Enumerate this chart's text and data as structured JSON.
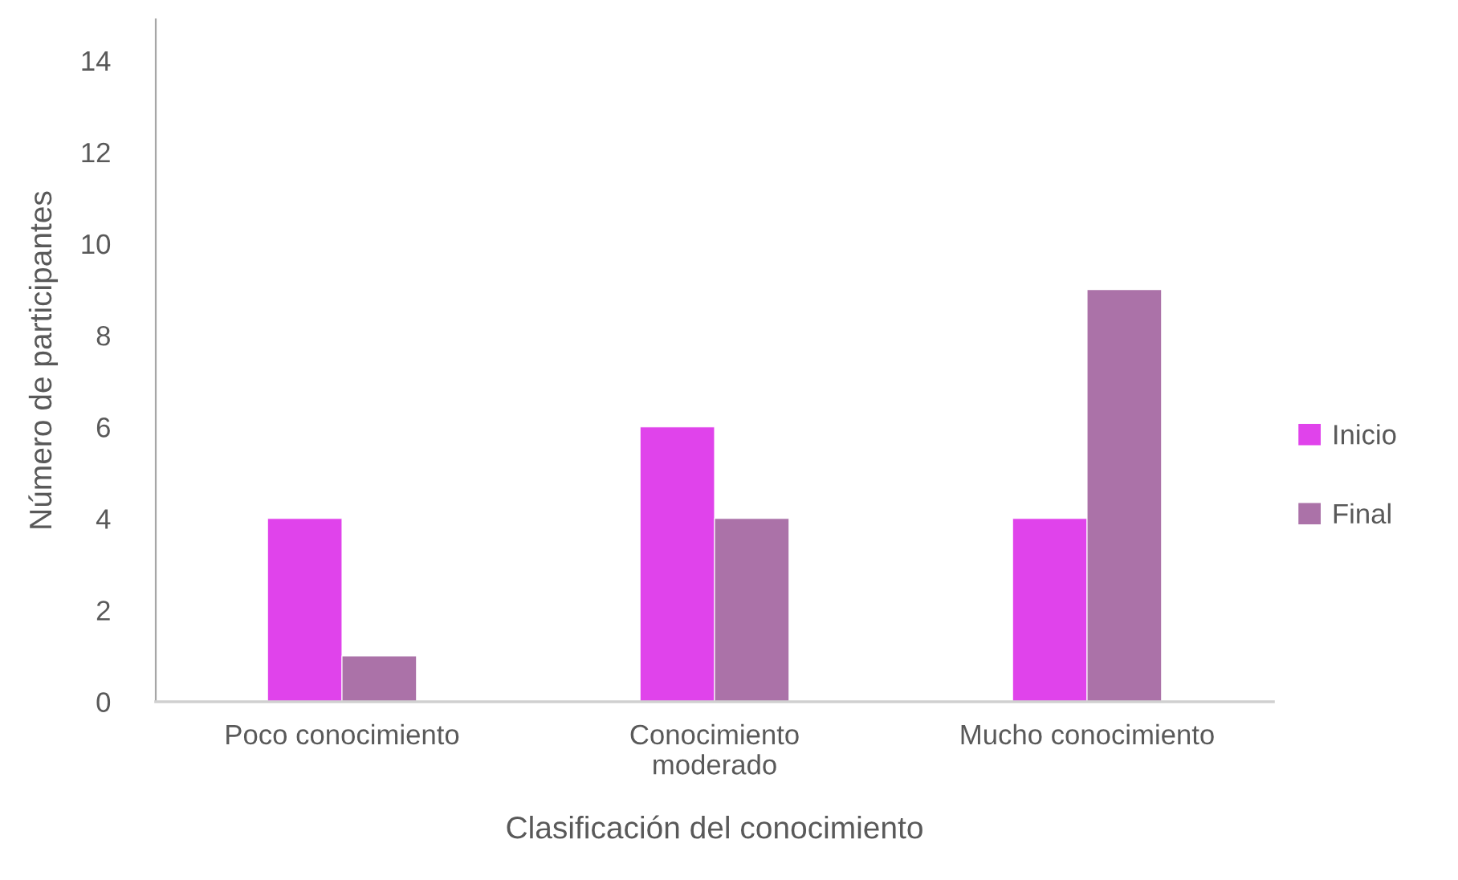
{
  "chart_data": {
    "type": "bar",
    "xlabel": "Clasificación del conocimiento",
    "ylabel": "Número de participantes",
    "categories": [
      "Poco conocimiento",
      "Conocimiento\nmoderado",
      "Mucho conocimiento"
    ],
    "series": [
      {
        "name": "Inicio",
        "color": "#e043eb",
        "values": [
          4,
          6,
          4
        ]
      },
      {
        "name": "Final",
        "color": "#ab72a8",
        "values": [
          1,
          4,
          9
        ]
      }
    ],
    "ylim": [
      0,
      14.9
    ],
    "yticks": [
      0,
      2,
      4,
      6,
      8,
      10,
      12,
      14
    ],
    "grid": false,
    "legend": "right"
  }
}
